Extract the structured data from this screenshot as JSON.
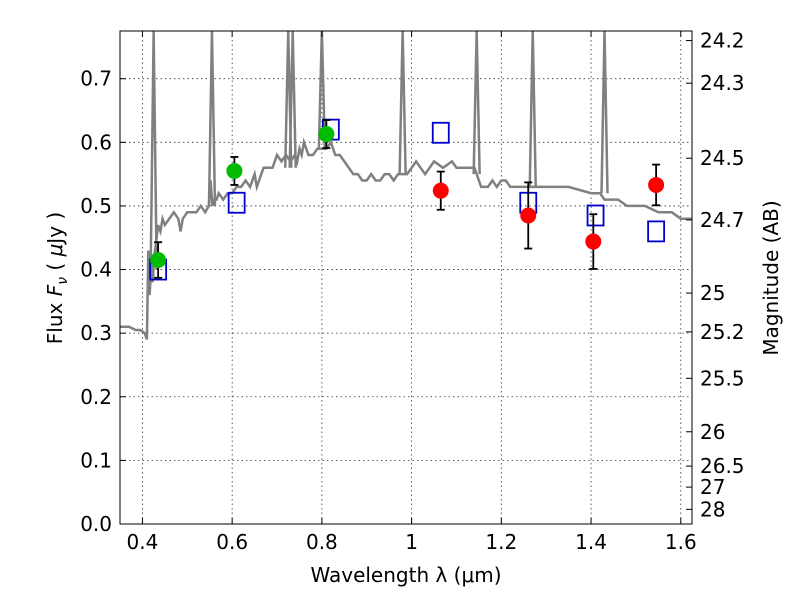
{
  "chart_data": {
    "type": "scatter",
    "xlabel": "Wavelength  λ (μm)",
    "ylabel": "Flux  F_ν  ( μJy )",
    "ylabel_right": "Magnitude (AB)",
    "xlim": [
      0.35,
      1.625
    ],
    "ylim": [
      0.0,
      0.775
    ],
    "grid": true,
    "x_ticks": [
      0.4,
      0.6,
      0.8,
      1.0,
      1.2,
      1.4,
      1.6
    ],
    "x_tick_labels": [
      "0.4",
      "0.6",
      "0.8",
      "1",
      "1.2",
      "1.4",
      "1.6"
    ],
    "y_ticks": [
      0.0,
      0.1,
      0.2,
      0.3,
      0.4,
      0.5,
      0.6,
      0.7
    ],
    "y_tick_labels": [
      "0.0",
      "0.1",
      "0.2",
      "0.3",
      "0.4",
      "0.5",
      "0.6",
      "0.7"
    ],
    "right_ticks": [
      {
        "flux": 0.76,
        "label": "24.2"
      },
      {
        "flux": 0.693,
        "label": "24.3"
      },
      {
        "flux": 0.575,
        "label": "24.5"
      },
      {
        "flux": 0.478,
        "label": "24.7"
      },
      {
        "flux": 0.363,
        "label": "25"
      },
      {
        "flux": 0.302,
        "label": "25.2"
      },
      {
        "flux": 0.229,
        "label": "25.5"
      },
      {
        "flux": 0.145,
        "label": "26"
      },
      {
        "flux": 0.091,
        "label": "26.5"
      },
      {
        "flux": 0.058,
        "label": "27"
      },
      {
        "flux": 0.023,
        "label": "28"
      }
    ],
    "series": [
      {
        "kind": "line",
        "color": "#808080",
        "x": [
          0.35,
          0.37,
          0.385,
          0.395,
          0.405,
          0.41,
          0.413,
          0.416,
          0.42,
          0.422,
          0.424,
          0.426,
          0.43,
          0.435,
          0.44,
          0.445,
          0.45,
          0.46,
          0.47,
          0.48,
          0.485,
          0.49,
          0.5,
          0.51,
          0.52,
          0.53,
          0.54,
          0.548,
          0.552,
          0.556,
          0.56,
          0.565,
          0.57,
          0.58,
          0.59,
          0.6,
          0.61,
          0.62,
          0.63,
          0.64,
          0.65,
          0.655,
          0.66,
          0.665,
          0.67,
          0.68,
          0.69,
          0.7,
          0.71,
          0.72,
          0.73,
          0.74,
          0.745,
          0.75,
          0.755,
          0.76,
          0.765,
          0.77,
          0.78,
          0.79,
          0.8,
          0.81,
          0.82,
          0.83,
          0.84,
          0.85,
          0.86,
          0.87,
          0.88,
          0.89,
          0.9,
          0.91,
          0.92,
          0.93,
          0.94,
          0.95,
          0.96,
          0.97,
          0.98,
          0.99,
          1.0,
          1.01,
          1.02,
          1.03,
          1.04,
          1.05,
          1.07,
          1.09,
          1.1,
          1.11,
          1.12,
          1.13,
          1.14,
          1.145,
          1.15,
          1.155,
          1.16,
          1.17,
          1.18,
          1.19,
          1.2,
          1.21,
          1.22,
          1.25,
          1.3,
          1.35,
          1.4,
          1.42,
          1.43,
          1.44,
          1.46,
          1.48,
          1.5,
          1.52,
          1.55,
          1.58,
          1.6,
          1.625
        ],
        "y": [
          0.31,
          0.31,
          0.305,
          0.305,
          0.3,
          0.29,
          0.43,
          0.36,
          0.41,
          0.38,
          0.39,
          0.42,
          0.44,
          0.47,
          0.46,
          0.48,
          0.47,
          0.48,
          0.49,
          0.48,
          0.46,
          0.48,
          0.49,
          0.49,
          0.49,
          0.5,
          0.49,
          0.5,
          0.54,
          0.5,
          0.51,
          0.51,
          0.52,
          0.51,
          0.52,
          0.52,
          0.53,
          0.53,
          0.54,
          0.53,
          0.55,
          0.53,
          0.54,
          0.55,
          0.56,
          0.56,
          0.56,
          0.58,
          0.57,
          0.58,
          0.57,
          0.58,
          0.57,
          0.59,
          0.58,
          0.6,
          0.59,
          0.58,
          0.58,
          0.59,
          0.59,
          0.59,
          0.6,
          0.58,
          0.58,
          0.57,
          0.56,
          0.55,
          0.55,
          0.54,
          0.54,
          0.55,
          0.54,
          0.54,
          0.55,
          0.55,
          0.54,
          0.55,
          0.55,
          0.55,
          0.56,
          0.57,
          0.56,
          0.55,
          0.56,
          0.57,
          0.56,
          0.57,
          0.56,
          0.56,
          0.56,
          0.56,
          0.56,
          0.55,
          0.54,
          0.53,
          0.53,
          0.53,
          0.54,
          0.53,
          0.54,
          0.54,
          0.53,
          0.53,
          0.53,
          0.53,
          0.52,
          0.52,
          0.51,
          0.51,
          0.51,
          0.5,
          0.5,
          0.5,
          0.49,
          0.49,
          0.48,
          0.48
        ]
      },
      {
        "kind": "emission_lines",
        "color": "#808080",
        "lines": [
          {
            "x": 0.425,
            "base": 0.4,
            "peak": 0.775
          },
          {
            "x": 0.555,
            "base": 0.5,
            "peak": 0.775
          },
          {
            "x": 0.725,
            "base": 0.56,
            "peak": 0.775
          },
          {
            "x": 0.735,
            "base": 0.56,
            "peak": 0.775
          },
          {
            "x": 0.8,
            "base": 0.59,
            "peak": 0.775
          },
          {
            "x": 0.98,
            "base": 0.55,
            "peak": 0.775
          },
          {
            "x": 1.145,
            "base": 0.55,
            "peak": 0.775
          },
          {
            "x": 1.27,
            "base": 0.53,
            "peak": 0.775
          },
          {
            "x": 1.43,
            "base": 0.52,
            "peak": 0.775
          }
        ]
      },
      {
        "kind": "squares",
        "color": "#0000cc",
        "x": [
          0.435,
          0.61,
          0.82,
          1.065,
          1.26,
          1.41,
          1.545
        ],
        "y": [
          0.4,
          0.505,
          0.62,
          0.615,
          0.505,
          0.485,
          0.46
        ]
      },
      {
        "kind": "points",
        "color": "#00bb00",
        "x": [
          0.435,
          0.605,
          0.81
        ],
        "y": [
          0.415,
          0.555,
          0.613
        ],
        "err": [
          0.028,
          0.022,
          0.022
        ]
      },
      {
        "kind": "points",
        "color": "#ff0000",
        "x": [
          1.065,
          1.26,
          1.405,
          1.545
        ],
        "y": [
          0.524,
          0.485,
          0.444,
          0.533
        ],
        "err": [
          0.03,
          0.052,
          0.043,
          0.032
        ]
      }
    ]
  }
}
